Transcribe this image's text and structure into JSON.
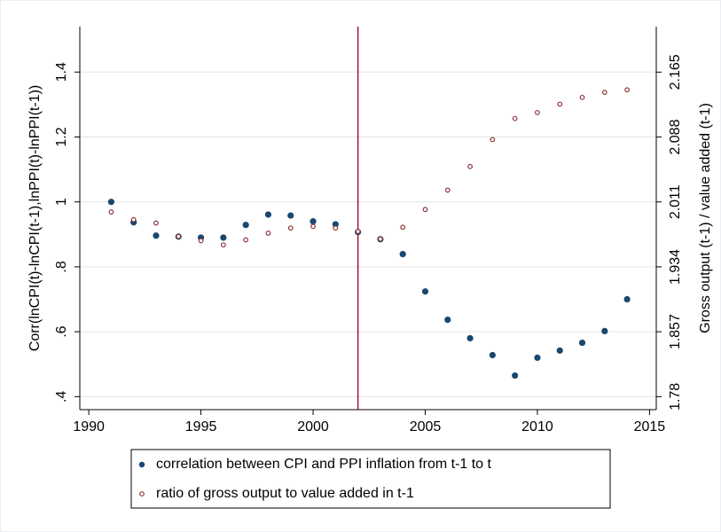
{
  "chart_data": {
    "type": "scatter",
    "y_label": "Corr(lnCPI(t)-lnCPI(t-1),lnPPI(t)-lnPPI(t-1))",
    "y2_label": "Gross output (t-1) / value added (t-1)",
    "x": [
      1991,
      1992,
      1993,
      1994,
      1995,
      1996,
      1997,
      1998,
      1999,
      2000,
      2001,
      2002,
      2003,
      2004,
      2005,
      2006,
      2007,
      2008,
      2009,
      2010,
      2011,
      2012,
      2013,
      2014
    ],
    "series": [
      {
        "name": "correlation between CPI and PPI inflation from t-1 to t",
        "color": "#1a476f",
        "marker": "filled",
        "values": [
          1.0,
          0.937,
          0.896,
          0.893,
          0.89,
          0.89,
          0.929,
          0.961,
          0.958,
          0.94,
          0.931,
          0.907,
          0.885,
          0.839,
          0.724,
          0.637,
          0.58,
          0.528,
          0.465,
          0.52,
          0.542,
          0.566,
          0.602,
          0.7
        ]
      },
      {
        "name": "ratio of gross output to value added in t-1",
        "color": "#90353b",
        "marker": "hollow",
        "axis": "y2",
        "values": [
          1.999,
          1.99,
          1.986,
          1.97,
          1.965,
          1.96,
          1.966,
          1.974,
          1.98,
          1.982,
          1.98,
          1.976,
          1.967,
          1.981,
          2.002,
          2.025,
          2.053,
          2.085,
          2.11,
          2.117,
          2.127,
          2.135,
          2.141,
          2.144
        ]
      }
    ],
    "xlim": [
      1989.6,
      2015.3
    ],
    "xticks": [
      1990,
      1995,
      2000,
      2005,
      2010,
      2015
    ],
    "ylim": [
      0.36,
      1.54
    ],
    "yticks": [
      {
        "value": 0.4,
        "label": ".4"
      },
      {
        "value": 0.6,
        "label": ".6"
      },
      {
        "value": 0.8,
        "label": ".8"
      },
      1,
      1.2,
      1.4
    ],
    "y2lim": [
      1.7646,
      2.219
    ],
    "y2ticks": [
      1.78,
      1.857,
      1.934,
      2.011,
      2.088,
      2.165
    ],
    "vlines": [
      2002
    ],
    "vline_color": "#a0162f",
    "grid": true,
    "legend": "bottom"
  }
}
